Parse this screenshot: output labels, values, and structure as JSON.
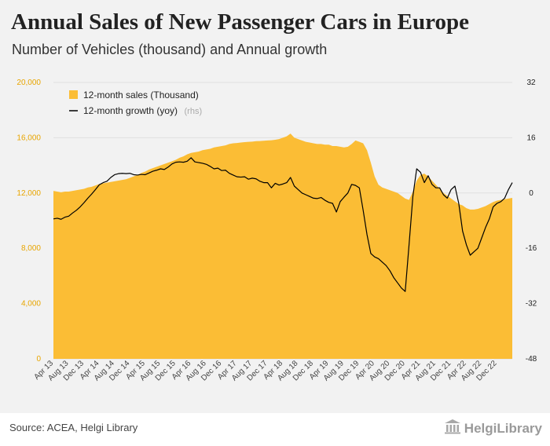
{
  "header": {
    "title": "Annual Sales of New Passenger Cars in Europe",
    "subtitle": "Number of Vehicles (thousand) and Annual growth"
  },
  "footer": {
    "source": "Source: ACEA, Helgi Library",
    "logo_text": "HelgiLibrary"
  },
  "colors": {
    "sales": "#fbbd35",
    "growth": "#000000",
    "left_axis": "#e8a500"
  },
  "chart_data": {
    "type": "area",
    "x": [
      "2013-04",
      "2013-05",
      "2013-06",
      "2013-07",
      "2013-08",
      "2013-09",
      "2013-10",
      "2013-11",
      "2013-12",
      "2014-01",
      "2014-02",
      "2014-03",
      "2014-04",
      "2014-05",
      "2014-06",
      "2014-07",
      "2014-08",
      "2014-09",
      "2014-10",
      "2014-11",
      "2014-12",
      "2015-01",
      "2015-02",
      "2015-03",
      "2015-04",
      "2015-05",
      "2015-06",
      "2015-07",
      "2015-08",
      "2015-09",
      "2015-10",
      "2015-11",
      "2015-12",
      "2016-01",
      "2016-02",
      "2016-03",
      "2016-04",
      "2016-05",
      "2016-06",
      "2016-07",
      "2016-08",
      "2016-09",
      "2016-10",
      "2016-11",
      "2016-12",
      "2017-01",
      "2017-02",
      "2017-03",
      "2017-04",
      "2017-05",
      "2017-06",
      "2017-07",
      "2017-08",
      "2017-09",
      "2017-10",
      "2017-11",
      "2017-12",
      "2018-01",
      "2018-02",
      "2018-03",
      "2018-04",
      "2018-05",
      "2018-06",
      "2018-07",
      "2018-08",
      "2018-09",
      "2018-10",
      "2018-11",
      "2018-12",
      "2019-01",
      "2019-02",
      "2019-03",
      "2019-04",
      "2019-05",
      "2019-06",
      "2019-07",
      "2019-08",
      "2019-09",
      "2019-10",
      "2019-11",
      "2019-12",
      "2020-01",
      "2020-02",
      "2020-03",
      "2020-04",
      "2020-05",
      "2020-06",
      "2020-07",
      "2020-08",
      "2020-09",
      "2020-10",
      "2020-11",
      "2020-12",
      "2021-01",
      "2021-02",
      "2021-03",
      "2021-04",
      "2021-05",
      "2021-06",
      "2021-07",
      "2021-08",
      "2021-09",
      "2021-10",
      "2021-11",
      "2021-12",
      "2022-01",
      "2022-02",
      "2022-03",
      "2022-04",
      "2022-05",
      "2022-06",
      "2022-07",
      "2022-08",
      "2022-09",
      "2022-10",
      "2022-11",
      "2022-12",
      "2023-01",
      "2023-02",
      "2023-03",
      "2023-04"
    ],
    "x_tick_labels": [
      "Apr 13",
      "Aug 13",
      "Dec 13",
      "Apr 14",
      "Aug 14",
      "Dec 14",
      "Apr 15",
      "Aug 15",
      "Dec 15",
      "Apr 16",
      "Aug 16",
      "Dec 16",
      "Apr 17",
      "Aug 17",
      "Dec 17",
      "Apr 18",
      "Aug 18",
      "Dec 18",
      "Apr 19",
      "Aug 19",
      "Dec 19",
      "Apr 20",
      "Aug 20",
      "Dec 20",
      "Apr 21",
      "Aug 21",
      "Dec 21",
      "Apr 22",
      "Aug 22",
      "Dec 22"
    ],
    "series": [
      {
        "name": "12-month sales (Thousand)",
        "type": "area",
        "axis": "left",
        "values": [
          12150,
          12100,
          12050,
          12100,
          12100,
          12150,
          12200,
          12250,
          12300,
          12400,
          12450,
          12550,
          12650,
          12700,
          12750,
          12800,
          12850,
          12900,
          12950,
          13000,
          13100,
          13200,
          13300,
          13450,
          13550,
          13700,
          13800,
          13900,
          14000,
          14100,
          14200,
          14300,
          14400,
          14550,
          14650,
          14800,
          14900,
          14950,
          15000,
          15100,
          15150,
          15200,
          15300,
          15350,
          15400,
          15450,
          15550,
          15600,
          15620,
          15650,
          15680,
          15700,
          15720,
          15750,
          15760,
          15780,
          15800,
          15820,
          15850,
          15900,
          16000,
          16100,
          16300,
          16000,
          15900,
          15800,
          15700,
          15650,
          15600,
          15550,
          15550,
          15500,
          15500,
          15400,
          15400,
          15350,
          15300,
          15350,
          15550,
          15800,
          15700,
          15600,
          15100,
          14200,
          13200,
          12600,
          12400,
          12300,
          12200,
          12100,
          12000,
          11800,
          11600,
          11500,
          12100,
          12900,
          13300,
          13400,
          13200,
          12900,
          12600,
          12300,
          12000,
          11800,
          11600,
          11400,
          11200,
          11100,
          10900,
          10800,
          10800,
          10850,
          10950,
          11050,
          11200,
          11350,
          11450,
          11500,
          11550,
          11600,
          11650
        ]
      },
      {
        "name": "12-month growth (yoy)",
        "legend_suffix": "(rhs)",
        "type": "line",
        "axis": "right",
        "values": [
          -7.5,
          -7.3,
          -7.6,
          -7.0,
          -6.7,
          -5.8,
          -5.0,
          -4.0,
          -2.8,
          -1.5,
          -0.3,
          1.0,
          2.4,
          3.0,
          3.4,
          4.5,
          5.3,
          5.6,
          5.7,
          5.6,
          5.7,
          5.3,
          5.2,
          5.4,
          5.3,
          5.8,
          6.3,
          6.6,
          7.0,
          6.8,
          7.5,
          8.4,
          8.9,
          9.0,
          8.9,
          9.2,
          10.2,
          9.0,
          8.8,
          8.6,
          8.3,
          7.7,
          7.0,
          7.2,
          6.5,
          6.6,
          5.7,
          5.2,
          4.7,
          4.6,
          4.7,
          4.0,
          4.3,
          4.1,
          3.4,
          3.0,
          3.0,
          1.5,
          2.8,
          2.3,
          2.6,
          3.0,
          4.5,
          2.0,
          1.0,
          0.0,
          -0.5,
          -1.0,
          -1.5,
          -1.6,
          -1.3,
          -2.1,
          -2.7,
          -3.0,
          -5.5,
          -2.5,
          -1.2,
          0.0,
          2.5,
          2.2,
          1.5,
          -5.0,
          -12.0,
          -17.5,
          -18.5,
          -19.0,
          -20.0,
          -21.0,
          -22.5,
          -24.5,
          -26.0,
          -27.5,
          -28.5,
          -15.0,
          -1.0,
          7.0,
          6.0,
          3.0,
          5.0,
          2.5,
          1.5,
          1.5,
          -0.5,
          -1.5,
          1.0,
          2.0,
          -3.0,
          -11.0,
          -15.0,
          -18.0,
          -17.0,
          -16.0,
          -13.0,
          -10.0,
          -7.5,
          -4.0,
          -3.0,
          -2.5,
          -1.5,
          1.0,
          3.0
        ]
      }
    ],
    "y_left": {
      "min": 0,
      "max": 20000,
      "ticks": [
        0,
        4000,
        8000,
        12000,
        16000,
        20000
      ],
      "tick_labels": [
        "0",
        "4,000",
        "8,000",
        "12,000",
        "16,000",
        "20,000"
      ]
    },
    "y_right": {
      "min": -48,
      "max": 32,
      "ticks": [
        -48,
        -32,
        -16,
        0,
        16,
        32
      ],
      "tick_labels": [
        "-48",
        "-32",
        "-16",
        "0",
        "16",
        "32"
      ]
    },
    "grid": "horizontal",
    "legend_placement": "top-left"
  }
}
